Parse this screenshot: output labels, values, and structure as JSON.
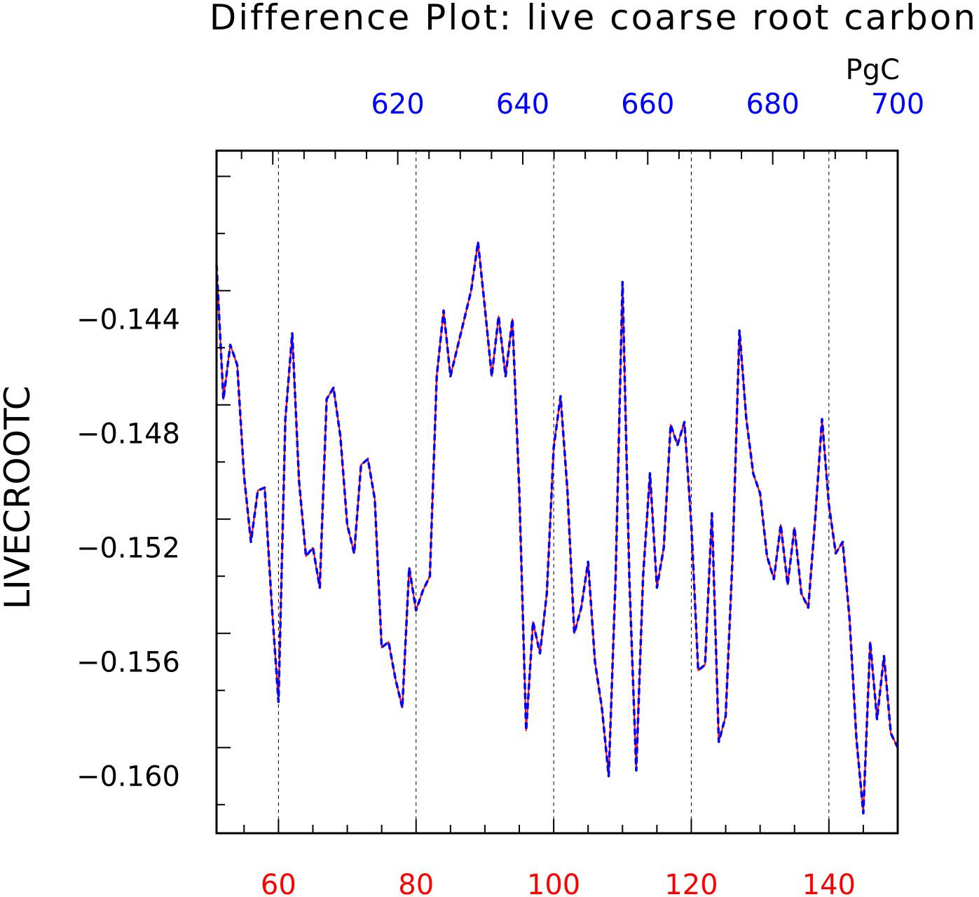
{
  "title": "Difference Plot: live coarse root carbon",
  "colors": {
    "bottom_axis": "#ff0000",
    "top_axis": "#0000ff",
    "series_solid": "#ff0000",
    "series_dashed": "#0000ff"
  },
  "chart_data": {
    "type": "line",
    "title": "Difference Plot: live coarse root carbon",
    "ylabel": "LIVECROOTC",
    "units": "PgC",
    "xlim": [
      51,
      150
    ],
    "ylim": [
      -0.162,
      -0.1381
    ],
    "top_xlim": [
      591,
      700
    ],
    "bottom_ticks": [
      "60",
      "80",
      "100",
      "120",
      "140"
    ],
    "bottom_tick_values": [
      60,
      80,
      100,
      120,
      140
    ],
    "top_ticks": [
      "620",
      "640",
      "660",
      "680",
      "700"
    ],
    "top_tick_values": [
      620,
      640,
      660,
      680,
      700
    ],
    "y_ticks": [
      "−0.144",
      "−0.148",
      "−0.152",
      "−0.156",
      "−0.160"
    ],
    "y_tick_values": [
      -0.144,
      -0.148,
      -0.152,
      -0.156,
      -0.16
    ],
    "grid": "vertical dashed at major x ticks",
    "x": [
      51,
      52,
      53,
      54,
      55,
      56,
      57,
      58,
      59,
      60,
      61,
      62,
      63,
      64,
      65,
      66,
      67,
      68,
      69,
      70,
      71,
      72,
      73,
      74,
      75,
      76,
      77,
      78,
      79,
      80,
      81,
      82,
      83,
      84,
      85,
      86,
      87,
      88,
      89,
      90,
      91,
      92,
      93,
      94,
      95,
      96,
      97,
      98,
      99,
      100,
      101,
      102,
      103,
      104,
      105,
      106,
      107,
      108,
      109,
      110,
      111,
      112,
      113,
      114,
      115,
      116,
      117,
      118,
      119,
      120,
      121,
      122,
      123,
      124,
      125,
      126,
      127,
      128,
      129,
      130,
      131,
      132,
      133,
      134,
      135,
      136,
      137,
      138,
      139,
      140,
      141,
      142,
      143,
      144,
      145,
      146,
      147,
      148,
      149,
      150
    ],
    "series": [
      {
        "style": "solid",
        "values": [
          -0.1421,
          -0.1468,
          -0.1449,
          -0.1456,
          -0.1495,
          -0.1518,
          -0.15,
          -0.1499,
          -0.1539,
          -0.1574,
          -0.1475,
          -0.1445,
          -0.1497,
          -0.1523,
          -0.152,
          -0.1534,
          -0.1468,
          -0.1464,
          -0.1481,
          -0.1512,
          -0.1522,
          -0.1491,
          -0.1489,
          -0.1503,
          -0.1555,
          -0.1553,
          -0.1566,
          -0.1576,
          -0.1527,
          -0.1542,
          -0.1535,
          -0.153,
          -0.146,
          -0.1437,
          -0.146,
          -0.145,
          -0.144,
          -0.143,
          -0.1413,
          -0.1436,
          -0.146,
          -0.1439,
          -0.146,
          -0.144,
          -0.15,
          -0.1584,
          -0.1546,
          -0.1557,
          -0.1536,
          -0.1485,
          -0.1467,
          -0.15,
          -0.155,
          -0.1541,
          -0.1525,
          -0.156,
          -0.1576,
          -0.16,
          -0.153,
          -0.1427,
          -0.1531,
          -0.1598,
          -0.153,
          -0.1494,
          -0.1534,
          -0.152,
          -0.1477,
          -0.1484,
          -0.1476,
          -0.1512,
          -0.1563,
          -0.1561,
          -0.1508,
          -0.1588,
          -0.1579,
          -0.1523,
          -0.1444,
          -0.1475,
          -0.1494,
          -0.1501,
          -0.1523,
          -0.1531,
          -0.1512,
          -0.1533,
          -0.1513,
          -0.1536,
          -0.1541,
          -0.151,
          -0.1475,
          -0.1505,
          -0.1522,
          -0.1518,
          -0.1545,
          -0.1587,
          -0.1613,
          -0.1553,
          -0.158,
          -0.1558,
          -0.1585,
          -0.159
        ]
      },
      {
        "style": "dashed",
        "values": [
          -0.1421,
          -0.1468,
          -0.1449,
          -0.1456,
          -0.1495,
          -0.1518,
          -0.15,
          -0.1499,
          -0.1539,
          -0.1574,
          -0.1475,
          -0.1445,
          -0.1497,
          -0.1523,
          -0.152,
          -0.1534,
          -0.1468,
          -0.1464,
          -0.1481,
          -0.1512,
          -0.1522,
          -0.1491,
          -0.1489,
          -0.1503,
          -0.1555,
          -0.1553,
          -0.1566,
          -0.1576,
          -0.1527,
          -0.1542,
          -0.1535,
          -0.153,
          -0.146,
          -0.1437,
          -0.146,
          -0.145,
          -0.144,
          -0.143,
          -0.1413,
          -0.1436,
          -0.146,
          -0.1439,
          -0.146,
          -0.144,
          -0.15,
          -0.1584,
          -0.1546,
          -0.1557,
          -0.1536,
          -0.1485,
          -0.1467,
          -0.15,
          -0.155,
          -0.1541,
          -0.1525,
          -0.156,
          -0.1576,
          -0.16,
          -0.153,
          -0.1427,
          -0.1531,
          -0.1598,
          -0.153,
          -0.1494,
          -0.1534,
          -0.152,
          -0.1477,
          -0.1484,
          -0.1476,
          -0.1512,
          -0.1563,
          -0.1561,
          -0.1508,
          -0.1588,
          -0.1579,
          -0.1523,
          -0.1444,
          -0.1475,
          -0.1494,
          -0.1501,
          -0.1523,
          -0.1531,
          -0.1512,
          -0.1533,
          -0.1513,
          -0.1536,
          -0.1541,
          -0.151,
          -0.1475,
          -0.1505,
          -0.1522,
          -0.1518,
          -0.1545,
          -0.1587,
          -0.1613,
          -0.1553,
          -0.158,
          -0.1558,
          -0.1585,
          -0.159
        ]
      }
    ]
  }
}
